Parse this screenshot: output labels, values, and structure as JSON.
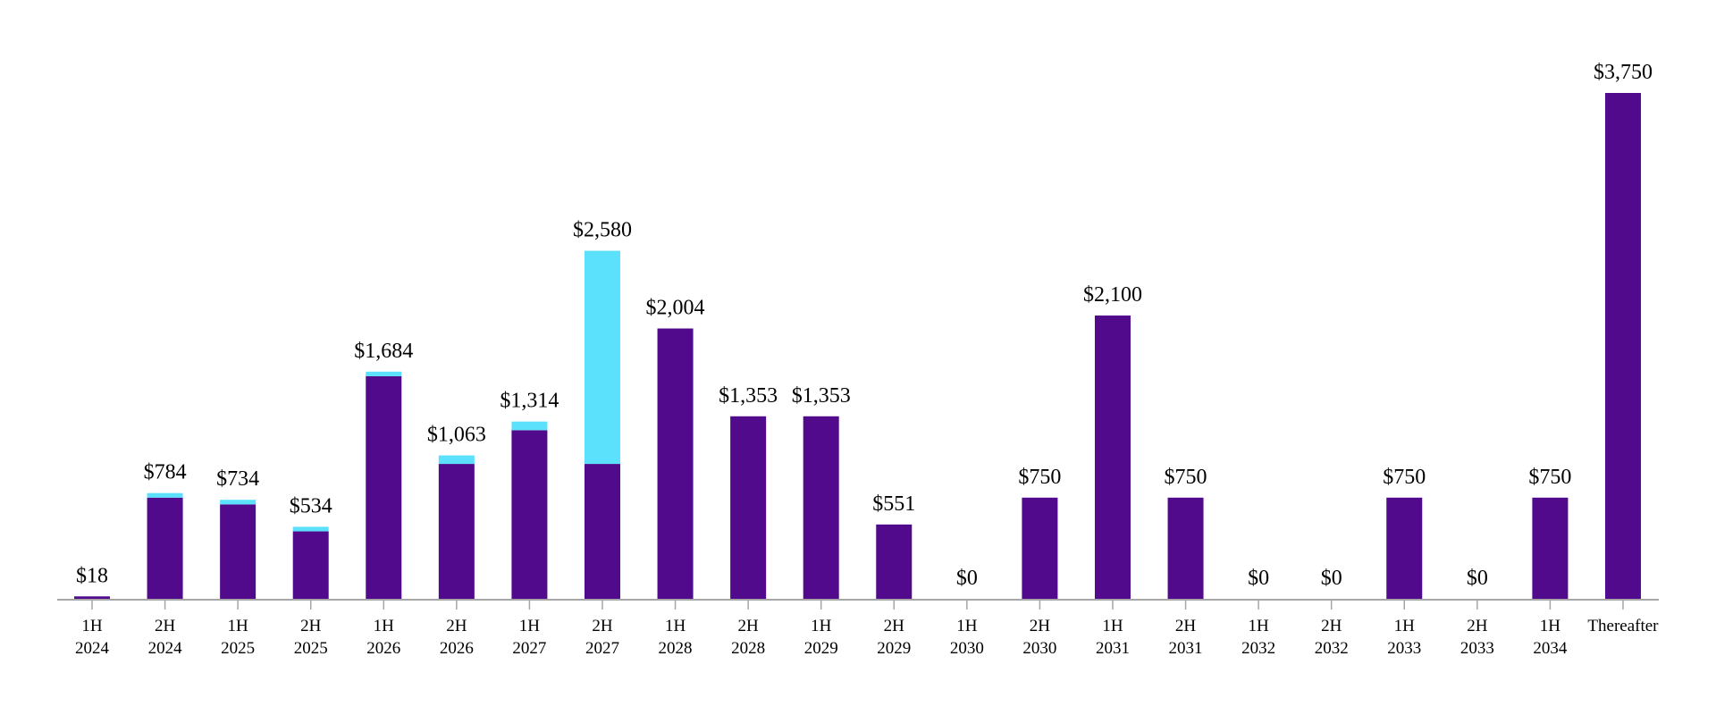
{
  "chart_data": {
    "type": "bar",
    "stacked": true,
    "title": "",
    "xlabel": "",
    "ylabel": "",
    "ylim": [
      0,
      3750
    ],
    "grid": false,
    "legend": "none",
    "categories": [
      [
        "1H",
        "2024"
      ],
      [
        "2H",
        "2024"
      ],
      [
        "1H",
        "2025"
      ],
      [
        "2H",
        "2025"
      ],
      [
        "1H",
        "2026"
      ],
      [
        "2H",
        "2026"
      ],
      [
        "1H",
        "2027"
      ],
      [
        "2H",
        "2027"
      ],
      [
        "1H",
        "2028"
      ],
      [
        "2H",
        "2028"
      ],
      [
        "1H",
        "2029"
      ],
      [
        "2H",
        "2029"
      ],
      [
        "1H",
        "2030"
      ],
      [
        "2H",
        "2030"
      ],
      [
        "1H",
        "2031"
      ],
      [
        "2H",
        "2031"
      ],
      [
        "1H",
        "2032"
      ],
      [
        "2H",
        "2032"
      ],
      [
        "1H",
        "2033"
      ],
      [
        "2H",
        "2033"
      ],
      [
        "1H",
        "2034"
      ],
      [
        "Thereafter",
        ""
      ]
    ],
    "series": [
      {
        "color": "#520a8c",
        "values": [
          18,
          750,
          700,
          500,
          1650,
          1000,
          1250,
          1000,
          2004,
          1353,
          1353,
          551,
          0,
          750,
          2100,
          750,
          0,
          0,
          750,
          0,
          750,
          3750
        ]
      },
      {
        "color": "#5ce1fc",
        "values": [
          0,
          34,
          34,
          34,
          34,
          63,
          64,
          1580,
          0,
          0,
          0,
          0,
          0,
          0,
          0,
          0,
          0,
          0,
          0,
          0,
          0,
          0
        ]
      }
    ],
    "data_labels": [
      "$18",
      "$784",
      "$734",
      "$534",
      "$1,684",
      "$1,063",
      "$1,314",
      "$2,580",
      "$2,004",
      "$1,353",
      "$1,353",
      "$551",
      "$0",
      "$750",
      "$2,100",
      "$750",
      "$0",
      "$0",
      "$750",
      "$0",
      "$750",
      "$3,750"
    ],
    "colors": {
      "axis": "#a6a6a6"
    }
  }
}
